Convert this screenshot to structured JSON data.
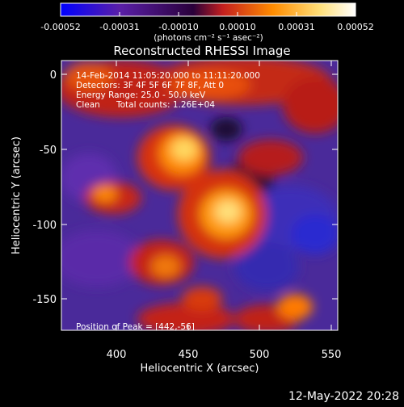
{
  "colorbar": {
    "tick_labels": [
      "-0.00052",
      "-0.00031",
      "-0.00010",
      "0.00010",
      "0.00031",
      "0.00052"
    ],
    "unit_label": "(photons cm⁻² s⁻¹ asec⁻²)",
    "colors": [
      "#0000ff",
      "#5a1fa8",
      "#2a003a",
      "#c41f1f",
      "#ff8c00",
      "#ffe07a",
      "#ffffff"
    ]
  },
  "plot": {
    "title": "Reconstructed RHESSI Image",
    "xlabel": "Heliocentric X (arcsec)",
    "ylabel": "Heliocentric Y (arcsec)",
    "x_ticks": [
      "400",
      "450",
      "500",
      "550"
    ],
    "y_ticks": [
      "0",
      "-50",
      "-100",
      "-150"
    ],
    "xlim": [
      363,
      555
    ],
    "ylim": [
      -182,
      10
    ]
  },
  "annotations": {
    "time_range": "14-Feb-2014 11:05:20.000 to 11:11:20.000",
    "detectors": "Detectors: 3F 4F 5F 6F 7F 8F, Att 0",
    "energy_range": "Energy Range: 25.0 - 50.0 keV",
    "clean_label": "Clean",
    "total_counts": "Total counts: 1.26E+04",
    "peak_position": "Position of Peak = [442,-56]"
  },
  "footer": {
    "timestamp": "12-May-2022 20:28"
  }
}
